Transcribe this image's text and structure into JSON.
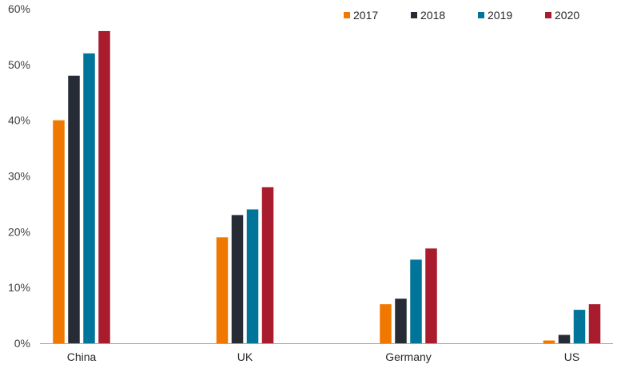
{
  "chart_data": {
    "type": "bar",
    "title": "",
    "xlabel": "",
    "ylabel": "",
    "categories": [
      "China",
      "UK",
      "Germany",
      "US"
    ],
    "series": [
      {
        "name": "2017",
        "color": "#f07800",
        "values": [
          40,
          19,
          7,
          0.5
        ]
      },
      {
        "name": "2018",
        "color": "#262b36",
        "values": [
          48,
          23,
          8,
          1.5
        ]
      },
      {
        "name": "2019",
        "color": "#007599",
        "values": [
          52,
          24,
          15,
          6
        ]
      },
      {
        "name": "2020",
        "color": "#a81c2e",
        "values": [
          56,
          28,
          17,
          7
        ]
      }
    ],
    "ylim": [
      0,
      60
    ],
    "yticks": [
      0,
      10,
      20,
      30,
      40,
      50,
      60
    ],
    "ytick_labels": [
      "0%",
      "10%",
      "20%",
      "30%",
      "40%",
      "50%",
      "60%"
    ],
    "grid": false,
    "legend_position": "top-right",
    "axis_color": "#a6a6a6"
  }
}
